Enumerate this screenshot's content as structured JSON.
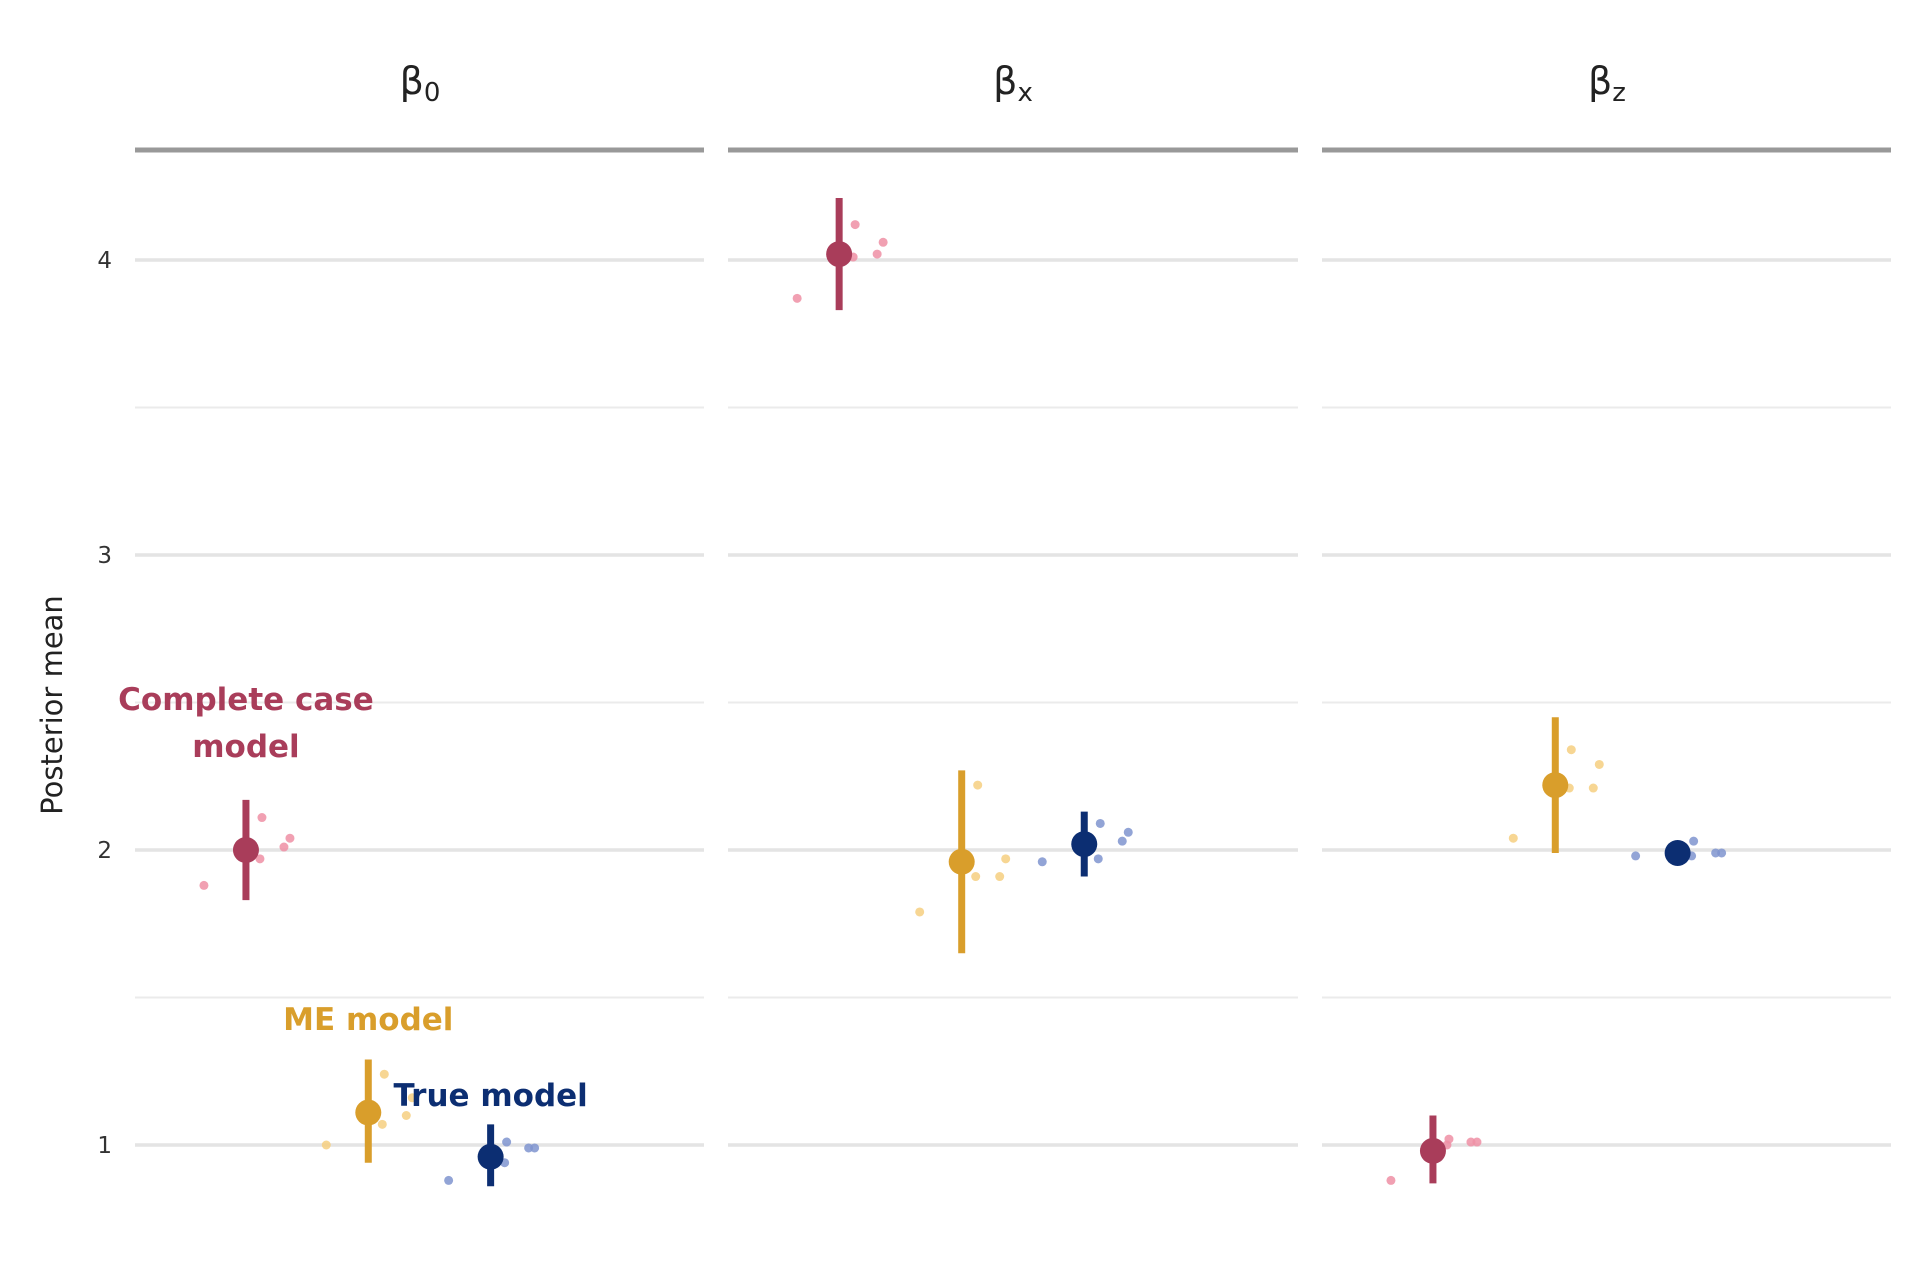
{
  "chart_data": {
    "type": "scatter",
    "ylabel": "Posterior mean",
    "ylim": [
      0.5,
      4.5
    ],
    "y_ticks": [
      1,
      2,
      3,
      4
    ],
    "grid": true,
    "colors": {
      "complete_case": "#a93d5a",
      "me": "#d99e2b",
      "true": "#0c2e72",
      "complete_case_light": "#ee8fa5",
      "me_light": "#f6cf80",
      "true_light": "#7f94cf"
    },
    "series_order": [
      "complete_case",
      "me",
      "true"
    ],
    "facets": [
      {
        "title_main": "β",
        "title_sub": "0",
        "summary": {
          "complete_case": {
            "mean": 2.0,
            "low": 1.83,
            "high": 2.17
          },
          "me": {
            "mean": 1.11,
            "low": 0.94,
            "high": 1.29
          },
          "true": {
            "mean": 0.96,
            "low": 0.86,
            "high": 1.07
          }
        },
        "runs": {
          "complete_case": [
            1.88,
            1.97,
            2.01,
            2.04,
            2.11
          ],
          "me": [
            1.0,
            1.07,
            1.1,
            1.16,
            1.24
          ],
          "true": [
            0.88,
            0.94,
            0.99,
            0.99,
            1.01
          ]
        }
      },
      {
        "title_main": "β",
        "title_sub": "x",
        "summary": {
          "complete_case": {
            "mean": 4.02,
            "low": 3.83,
            "high": 4.21
          },
          "me": {
            "mean": 1.96,
            "low": 1.65,
            "high": 2.27
          },
          "true": {
            "mean": 2.02,
            "low": 1.91,
            "high": 2.13
          }
        },
        "runs": {
          "complete_case": [
            3.87,
            4.01,
            4.02,
            4.06,
            4.12
          ],
          "me": [
            1.79,
            1.91,
            1.91,
            1.97,
            2.22
          ],
          "true": [
            1.96,
            1.97,
            2.03,
            2.06,
            2.09
          ]
        }
      },
      {
        "title_main": "β",
        "title_sub": "z",
        "summary": {
          "complete_case": {
            "mean": 0.98,
            "low": 0.87,
            "high": 1.1
          },
          "me": {
            "mean": 2.22,
            "low": 1.99,
            "high": 2.45
          },
          "true": {
            "mean": 1.99,
            "low": 1.98,
            "high": 2.0
          }
        },
        "runs": {
          "complete_case": [
            0.88,
            1.0,
            1.01,
            1.01,
            1.02
          ],
          "me": [
            2.04,
            2.21,
            2.21,
            2.29,
            2.34
          ],
          "true": [
            1.98,
            1.98,
            1.99,
            1.99,
            2.03
          ]
        }
      }
    ],
    "annotations": [
      {
        "series": "complete_case",
        "lines": [
          "Complete case",
          "model"
        ]
      },
      {
        "series": "me",
        "lines": [
          "ME model"
        ]
      },
      {
        "series": "true",
        "lines": [
          "True model"
        ]
      }
    ]
  }
}
